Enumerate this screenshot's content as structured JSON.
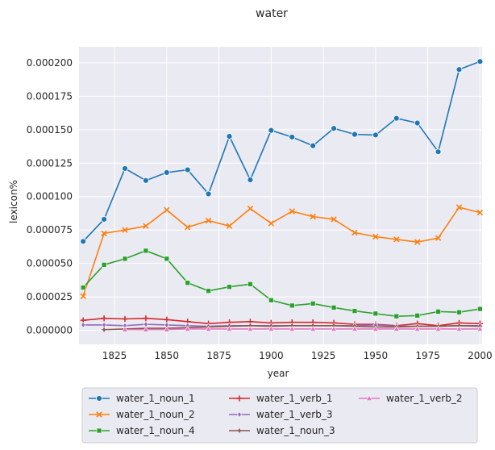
{
  "chart_data": {
    "type": "line",
    "title": "water",
    "xlabel": "year",
    "ylabel": "lexicon%",
    "xlim": [
      1808,
      2001
    ],
    "ylim": [
      -1.05e-05,
      0.000212
    ],
    "xticks": [
      1825,
      1850,
      1875,
      1900,
      1925,
      1950,
      1975,
      2000
    ],
    "yticks": [
      0.0,
      2.5e-05,
      5e-05,
      7.5e-05,
      0.0001,
      0.000125,
      0.00015,
      0.000175,
      0.0002
    ],
    "ytick_labels": [
      "0.000000",
      "0.000025",
      "0.000050",
      "0.000075",
      "0.000100",
      "0.000125",
      "0.000150",
      "0.000175",
      "0.000200"
    ],
    "grid": true,
    "legend_position": "below",
    "series": [
      {
        "name": "water_1_noun_1",
        "color": "#1f77b4",
        "marker": "circle",
        "x": [
          1810,
          1820,
          1830,
          1840,
          1850,
          1860,
          1870,
          1880,
          1890,
          1900,
          1910,
          1920,
          1930,
          1940,
          1950,
          1960,
          1970,
          1980,
          1990,
          2000
        ],
        "y": [
          6.65e-05,
          8.3e-05,
          0.000121,
          0.000112,
          0.000118,
          0.00012,
          0.000102,
          0.000145,
          0.0001125,
          0.0001495,
          0.0001445,
          0.000138,
          0.000151,
          0.0001465,
          0.000146,
          0.0001585,
          0.000155,
          0.0001335,
          0.000195,
          0.000201
        ]
      },
      {
        "name": "water_1_noun_2",
        "color": "#ff7f0e",
        "marker": "x",
        "x": [
          1810,
          1820,
          1830,
          1840,
          1850,
          1860,
          1870,
          1880,
          1890,
          1900,
          1910,
          1920,
          1930,
          1940,
          1950,
          1960,
          1970,
          1980,
          1990,
          2000
        ],
        "y": [
          2.55e-05,
          7.25e-05,
          7.5e-05,
          7.8e-05,
          9e-05,
          7.7e-05,
          8.2e-05,
          7.8e-05,
          9.1e-05,
          8e-05,
          8.9e-05,
          8.5e-05,
          8.3e-05,
          7.3e-05,
          7e-05,
          6.8e-05,
          6.6e-05,
          6.9e-05,
          9.2e-05,
          8.8e-05
        ]
      },
      {
        "name": "water_1_noun_4",
        "color": "#2ca02c",
        "marker": "square",
        "x": [
          1810,
          1820,
          1830,
          1840,
          1850,
          1860,
          1870,
          1880,
          1890,
          1900,
          1910,
          1920,
          1930,
          1940,
          1950,
          1960,
          1970,
          1980,
          1990,
          2000
        ],
        "y": [
          3.2e-05,
          4.9e-05,
          5.35e-05,
          5.95e-05,
          5.35e-05,
          3.55e-05,
          2.95e-05,
          3.25e-05,
          3.45e-05,
          2.25e-05,
          1.85e-05,
          2e-05,
          1.7e-05,
          1.45e-05,
          1.25e-05,
          1.05e-05,
          1.1e-05,
          1.4e-05,
          1.35e-05,
          1.6e-05
        ]
      },
      {
        "name": "water_1_verb_1",
        "color": "#d62728",
        "marker": "plus",
        "x": [
          1810,
          1820,
          1830,
          1840,
          1850,
          1860,
          1870,
          1880,
          1890,
          1900,
          1910,
          1920,
          1930,
          1940,
          1950,
          1960,
          1970,
          1980,
          1990,
          2000
        ],
        "y": [
          7.5e-06,
          9e-06,
          8.5e-06,
          9e-06,
          8e-06,
          6.5e-06,
          5e-06,
          6e-06,
          6.5e-06,
          5.5e-06,
          6e-06,
          6e-06,
          5.5e-06,
          4.5e-06,
          4.5e-06,
          3.5e-06,
          5e-06,
          3.5e-06,
          5.5e-06,
          5e-06
        ]
      },
      {
        "name": "water_1_verb_3",
        "color": "#9467bd",
        "marker": "diamond",
        "x": [
          1810,
          1820,
          1830,
          1840,
          1850,
          1860,
          1870,
          1880,
          1890,
          1900,
          1910,
          1920,
          1930,
          1940,
          1950,
          1960,
          1970,
          1980,
          1990,
          2000
        ],
        "y": [
          4e-06,
          4e-06,
          3.5e-06,
          4.5e-06,
          4e-06,
          3.5e-06,
          3e-06,
          3.5e-06,
          3.5e-06,
          3.5e-06,
          3.5e-06,
          3.5e-06,
          3.5e-06,
          3.5e-06,
          4e-06,
          3e-06,
          3e-06,
          3e-06,
          3.5e-06,
          3.5e-06
        ]
      },
      {
        "name": "water_1_noun_3",
        "color": "#8c564b",
        "marker": "star",
        "x": [
          1820,
          1830,
          1840,
          1850,
          1860,
          1870,
          1880,
          1890,
          1900,
          1910,
          1920,
          1930,
          1940,
          1950,
          1960,
          1970,
          1980,
          1990,
          2000
        ],
        "y": [
          5e-07,
          1e-06,
          1.5e-06,
          1.5e-06,
          2e-06,
          2.5e-06,
          3e-06,
          3.5e-06,
          3e-06,
          3.5e-06,
          3.5e-06,
          3.5e-06,
          3e-06,
          2.5e-06,
          2.5e-06,
          3e-06,
          3e-06,
          3.5e-06,
          3e-06
        ]
      },
      {
        "name": "water_1_verb_2",
        "color": "#e377c2",
        "marker": "triangle",
        "x": [
          1830,
          1840,
          1850,
          1860,
          1870,
          1880,
          1890,
          1900,
          1910,
          1920,
          1930,
          1940,
          1950,
          1960,
          1970,
          1980,
          1990,
          2000
        ],
        "y": [
          5e-07,
          5e-07,
          5e-07,
          1e-06,
          1e-06,
          1e-06,
          1e-06,
          1e-06,
          1e-06,
          1e-06,
          1e-06,
          1e-06,
          1e-06,
          1e-06,
          1e-06,
          1e-06,
          1e-06,
          1e-06
        ]
      }
    ]
  }
}
